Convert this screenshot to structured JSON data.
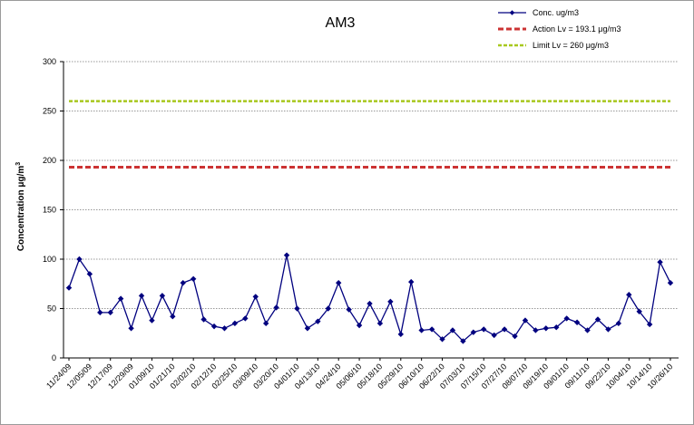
{
  "chart_data": {
    "type": "line",
    "title": "AM3",
    "ylabel": "Concentration μg/m",
    "ylabel_superscript": "3",
    "ylim": [
      0,
      300
    ],
    "yticks": [
      0,
      50,
      100,
      150,
      200,
      250,
      300
    ],
    "grid": true,
    "legend_position": "top-right",
    "xtick_labels": [
      "11/24/09",
      "12/05/09",
      "12/17/09",
      "12/29/09",
      "01/09/10",
      "01/21/10",
      "02/02/10",
      "02/12/10",
      "02/25/10",
      "03/09/10",
      "03/20/10",
      "04/01/10",
      "04/13/10",
      "04/24/10",
      "05/06/10",
      "05/18/10",
      "05/29/10",
      "06/10/10",
      "06/22/10",
      "07/03/10",
      "07/15/10",
      "07/27/10",
      "08/07/10",
      "08/19/10",
      "09/01/10",
      "09/11/10",
      "09/22/10",
      "10/04/10",
      "10/14/10",
      "10/26/10"
    ],
    "series": [
      {
        "name": "Conc. ug/m3",
        "color": "#00007f",
        "marker": "diamond",
        "values": [
          71,
          100,
          85,
          46,
          46,
          60,
          30,
          63,
          38,
          63,
          42,
          76,
          80,
          39,
          32,
          30,
          35,
          40,
          62,
          35,
          51,
          104,
          50,
          30,
          37,
          50,
          76,
          49,
          33,
          55,
          35,
          57,
          24,
          77,
          28,
          29,
          19,
          28,
          17,
          26,
          29,
          23,
          29,
          22,
          38,
          28,
          30,
          31,
          40,
          36,
          28,
          39,
          29,
          35,
          64,
          47,
          34,
          97,
          76
        ]
      },
      {
        "name": "Action Lv = 193.1 μg/m3",
        "color": "#cc3333",
        "style": "dashed",
        "values": [
          193.1
        ]
      },
      {
        "name": "Limit Lv = 260 μg/m3",
        "color": "#a8c81e",
        "style": "dashed",
        "values": [
          260
        ]
      }
    ]
  }
}
